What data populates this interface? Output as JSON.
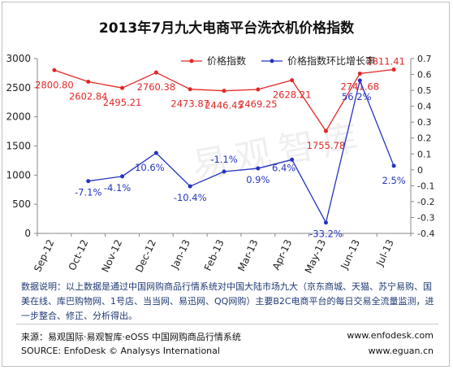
{
  "chart_data": {
    "type": "line",
    "title": "2013年7月九大电商平台洗衣机价格指数",
    "categories": [
      "Sep-12",
      "Oct-12",
      "Nov-12",
      "Dec-12",
      "Jan-13",
      "Feb-13",
      "Mar-13",
      "Apr-13",
      "May-13",
      "Jun-13",
      "Jul-13"
    ],
    "y_left": {
      "range": [
        0,
        3000
      ],
      "ticks": [
        "0",
        "500",
        "1000",
        "1500",
        "2000",
        "2500",
        "3000"
      ]
    },
    "y_right": {
      "range": [
        -0.4,
        0.7
      ],
      "ticks": [
        "-0.4",
        "-0.3",
        "-0.2",
        "-0.1",
        "0",
        "0.1",
        "0.2",
        "0.3",
        "0.4",
        "0.5",
        "0.6",
        "0.7"
      ]
    },
    "series": [
      {
        "name": "价格指数",
        "axis": "left",
        "color": "#e32626",
        "values": [
          2800.8,
          2602.84,
          2495.21,
          2760.38,
          2473.87,
          2446.45,
          2469.25,
          2628.21,
          1755.78,
          2741.68,
          2811.41
        ],
        "labels": [
          "2800.80",
          "2602.84",
          "2495.21",
          "2760.38",
          "2473.87",
          "2446.45",
          "2469.25",
          "2628.21",
          "1755.78",
          "2741.68",
          "2811.41"
        ]
      },
      {
        "name": "价格指数环比增长率",
        "axis": "right",
        "color": "#2433c2",
        "values": [
          null,
          -0.071,
          -0.041,
          0.106,
          -0.104,
          -0.011,
          0.009,
          0.064,
          -0.332,
          0.562,
          0.025
        ],
        "labels": [
          null,
          "-7.1%",
          "-4.1%",
          "10.6%",
          "-10.4%",
          "-1.1%",
          "0.9%",
          "6.4%",
          "-33.2%",
          "56.2%",
          "2.5%"
        ]
      }
    ],
    "legend_position": "top",
    "grid": false
  },
  "notes": "数据说明：以上数据是通过中国网购商品行情系统对中国大陆市场九大（京东商城、天猫、苏宁易购、国美在线、库巴购物网、1号店、当当网、易迅网、QQ网购）主要B2C电商平台的每日交易全流量监测，进一步整合、修正、分析得出。",
  "source_cn": "来源：易观国际·易观智库·eOSS 中国网购商品行情系统",
  "source_en": "SOURCE: EnfoDesk © Analysys International",
  "url1": "www.enfodesk.com",
  "url2": "www.eguan.cn",
  "watermark": "易观智库"
}
